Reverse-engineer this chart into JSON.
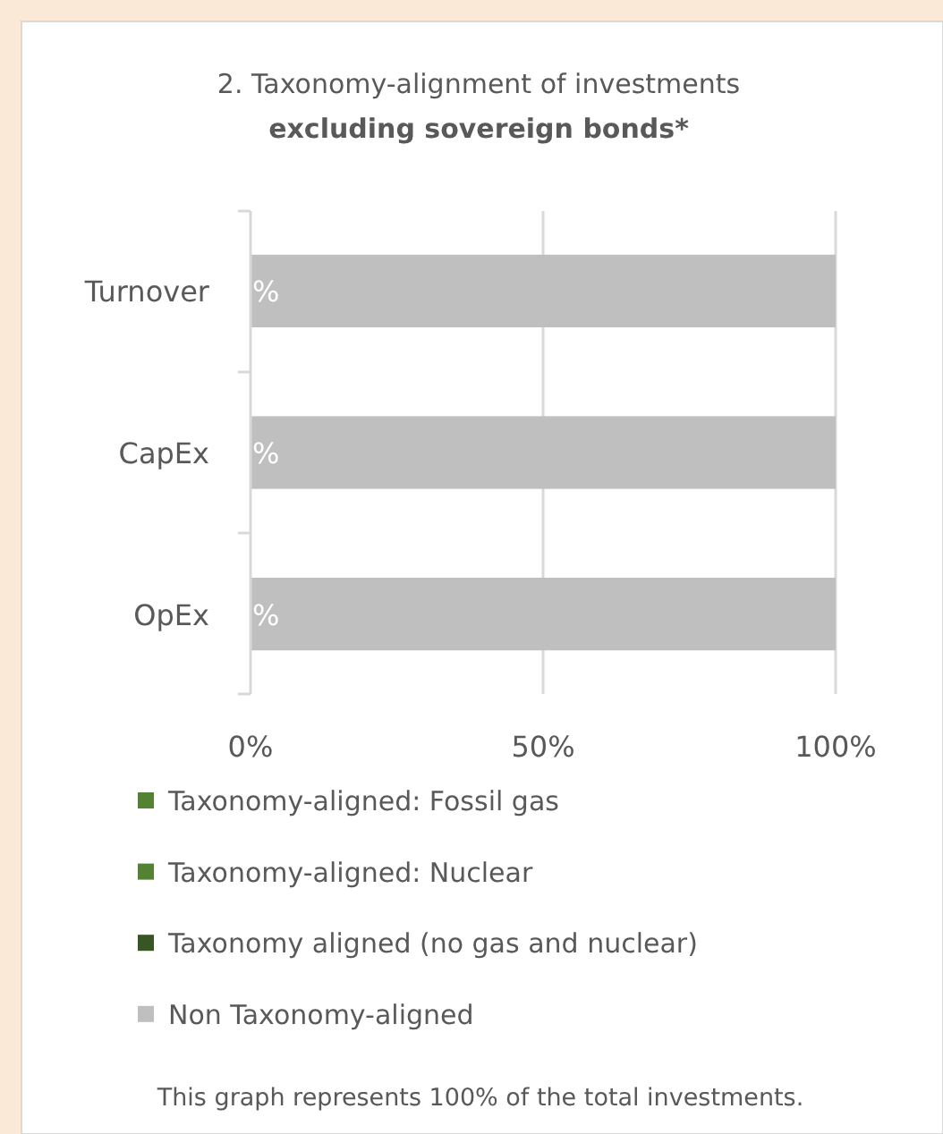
{
  "chart_data": {
    "type": "bar",
    "orientation": "horizontal",
    "title": "2. Taxonomy-alignment of investments",
    "subtitle": "excluding sovereign bonds*",
    "categories": [
      "Turnover",
      "CapEx",
      "OpEx"
    ],
    "series": [
      {
        "name": "Taxonomy-aligned: Fossil gas",
        "color": "#548235",
        "values": [
          0,
          0,
          0
        ],
        "value_labels": [
          "%",
          "%",
          "%"
        ]
      },
      {
        "name": "Taxonomy-aligned: Nuclear",
        "color": "#548235",
        "values": [
          0,
          0,
          0
        ]
      },
      {
        "name": "Taxonomy aligned (no gas and nuclear)",
        "color": "#375623",
        "values": [
          0,
          0,
          0
        ]
      },
      {
        "name": "Non Taxonomy-aligned",
        "color": "#bfbfbf",
        "values": [
          100,
          100,
          100
        ]
      }
    ],
    "xlim": [
      0,
      100
    ],
    "xticks": [
      {
        "value": 0,
        "label": "0%"
      },
      {
        "value": 50,
        "label": "50%"
      },
      {
        "value": 100,
        "label": "100%"
      }
    ],
    "grid": "x",
    "legend": "bottom",
    "annotations": [
      "This graph represents 100% of the total investments."
    ]
  }
}
